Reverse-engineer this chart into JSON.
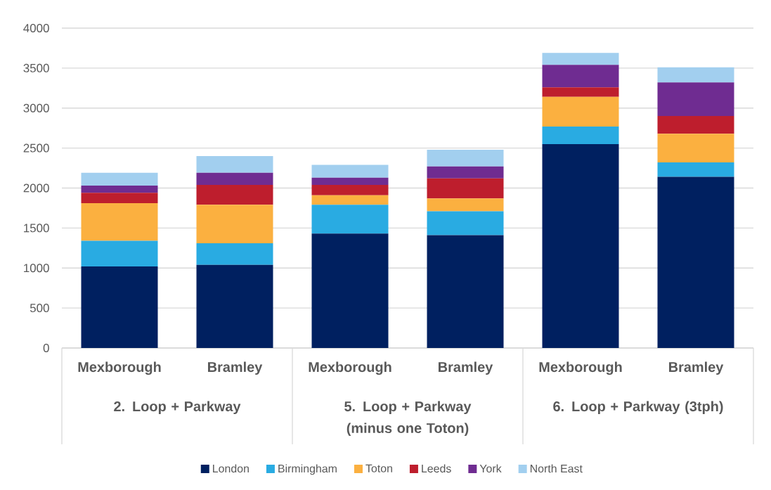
{
  "chart_data": {
    "type": "bar",
    "stacked": true,
    "categories": [
      "Mexborough",
      "Bramley",
      "Mexborough",
      "Bramley",
      "Mexborough",
      "Bramley"
    ],
    "series": [
      {
        "name": "London",
        "color": "#002060",
        "values": [
          1020,
          1040,
          1430,
          1410,
          2550,
          2140
        ]
      },
      {
        "name": "Birmingham",
        "color": "#29abe2",
        "values": [
          320,
          270,
          360,
          300,
          220,
          180
        ]
      },
      {
        "name": "Toton",
        "color": "#fbb040",
        "values": [
          470,
          480,
          120,
          160,
          370,
          360
        ]
      },
      {
        "name": "Leeds",
        "color": "#be1e2d",
        "values": [
          130,
          250,
          130,
          250,
          120,
          220
        ]
      },
      {
        "name": "York",
        "color": "#6f2c91",
        "values": [
          90,
          150,
          90,
          150,
          280,
          420
        ]
      },
      {
        "name": "North East",
        "color": "#a2cfef",
        "values": [
          160,
          210,
          160,
          210,
          150,
          190
        ]
      }
    ],
    "annotations": [
      "2. Loop + Parkway",
      "5. Loop + Parkway (minus one Toton)",
      "6. Loop + Parkway (3tph)"
    ],
    "ylim": [
      0,
      4000
    ],
    "yticks": [
      0,
      500,
      1000,
      1500,
      2000,
      2500,
      3000,
      3500,
      4000
    ],
    "grid": "y",
    "legend": "bottom"
  }
}
